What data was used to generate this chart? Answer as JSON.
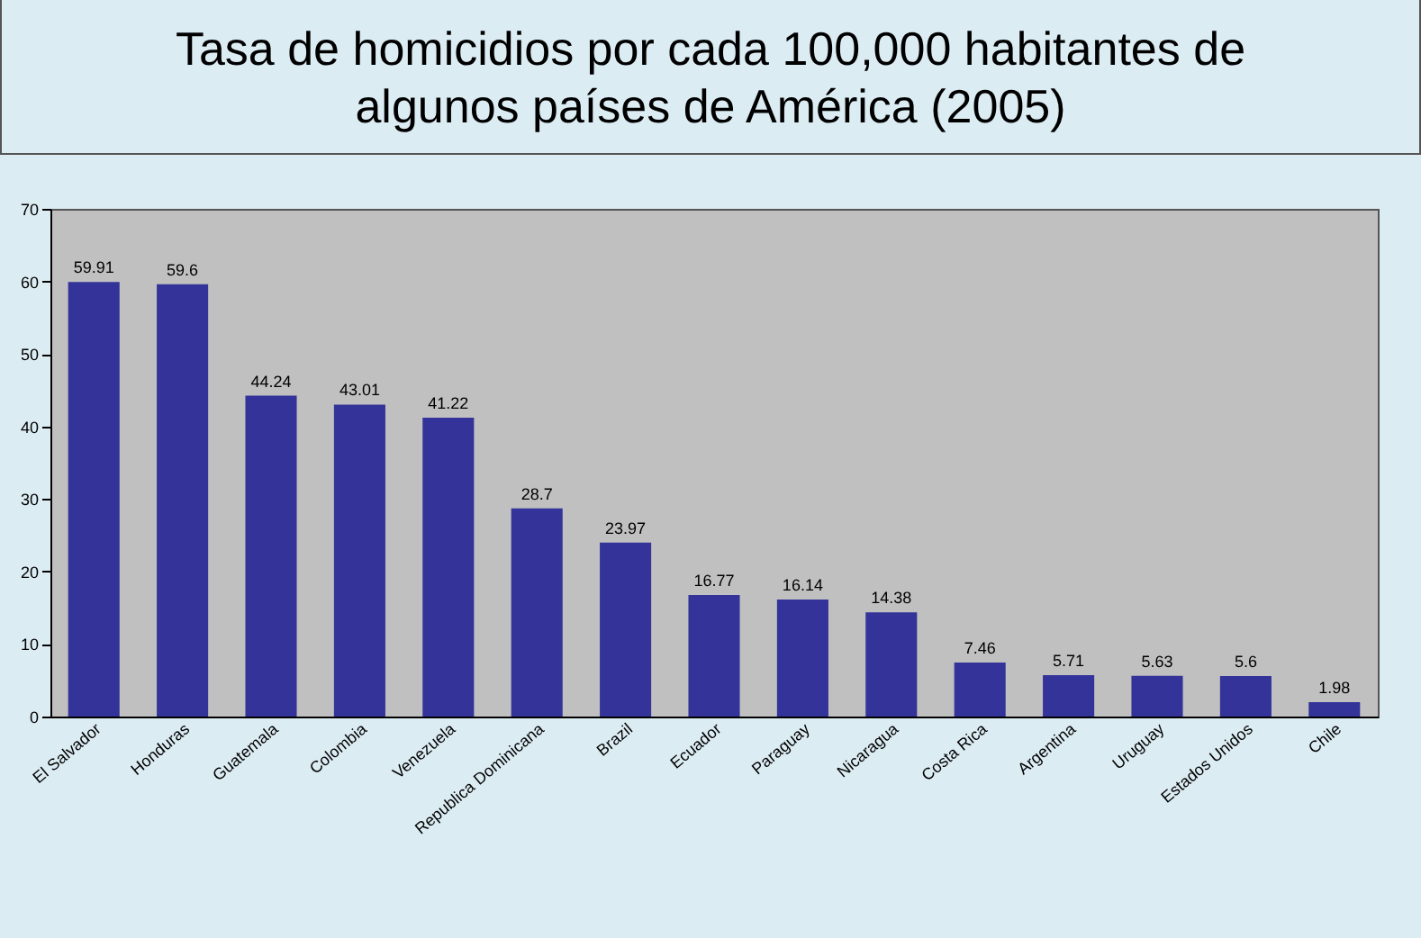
{
  "chart_data": {
    "type": "bar",
    "title": "Tasa de homicidios por cada 100,000 habitantes de algunos países de América (2005)",
    "categories": [
      "El Salvador",
      "Honduras",
      "Guatemala",
      "Colombia",
      "Venezuela",
      "Republica Dominicana",
      "Brazil",
      "Ecuador",
      "Paraguay",
      "Nicaragua",
      "Costa Rica",
      "Argentina",
      "Uruguay",
      "Estados Unidos",
      "Chile"
    ],
    "values": [
      59.91,
      59.6,
      44.24,
      43.01,
      41.22,
      28.7,
      23.97,
      16.77,
      16.14,
      14.38,
      7.46,
      5.71,
      5.63,
      5.6,
      1.98
    ],
    "color": "#333399",
    "ylim": [
      0,
      70
    ],
    "yticks": [
      0,
      10,
      20,
      30,
      40,
      50,
      60,
      70
    ],
    "grid": false,
    "data_labels": true
  }
}
